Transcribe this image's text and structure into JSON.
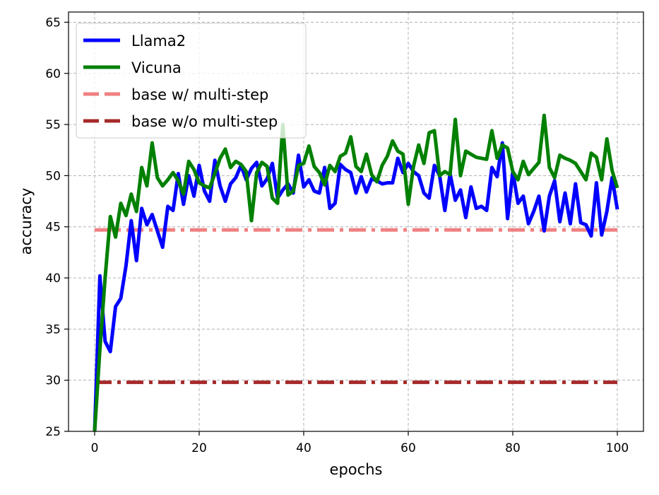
{
  "chart_data": {
    "type": "line",
    "title": "",
    "xlabel": "epochs",
    "ylabel": "accuracy",
    "xlim": [
      -5,
      105
    ],
    "ylim": [
      25,
      66
    ],
    "xticks": [
      0,
      20,
      40,
      60,
      80,
      100
    ],
    "yticks": [
      25,
      30,
      35,
      40,
      45,
      50,
      55,
      60,
      65
    ],
    "grid": true,
    "legend_position": "top-left",
    "series": [
      {
        "name": "Llama2",
        "color": "#0000ff",
        "style": "solid",
        "x": [
          0,
          1,
          2,
          3,
          4,
          5,
          6,
          7,
          8,
          9,
          10,
          11,
          12,
          13,
          14,
          15,
          16,
          17,
          18,
          19,
          20,
          21,
          22,
          23,
          24,
          25,
          26,
          27,
          28,
          29,
          30,
          31,
          32,
          33,
          34,
          35,
          36,
          37,
          38,
          39,
          40,
          41,
          42,
          43,
          44,
          45,
          46,
          47,
          48,
          49,
          50,
          51,
          52,
          53,
          54,
          55,
          56,
          57,
          58,
          59,
          60,
          61,
          62,
          63,
          64,
          65,
          66,
          67,
          68,
          69,
          70,
          71,
          72,
          73,
          74,
          75,
          76,
          77,
          78,
          79,
          80,
          81,
          82,
          83,
          84,
          85,
          86,
          87,
          88,
          89,
          90,
          91,
          92,
          93,
          94,
          95,
          96,
          97,
          98,
          99,
          100
        ],
        "values": [
          25.0,
          40.2,
          33.8,
          32.8,
          37.2,
          38.0,
          41.2,
          45.6,
          41.7,
          46.8,
          45.2,
          46.2,
          44.6,
          43.0,
          47.0,
          46.6,
          50.2,
          47.2,
          50.0,
          48.0,
          51.0,
          48.5,
          47.5,
          51.5,
          49.0,
          47.5,
          49.2,
          49.8,
          51.0,
          49.6,
          50.7,
          51.3,
          49.0,
          49.7,
          51.2,
          47.8,
          48.6,
          49.2,
          48.3,
          52.0,
          48.9,
          49.6,
          48.5,
          48.3,
          50.8,
          46.8,
          47.3,
          51.1,
          50.6,
          50.3,
          48.3,
          49.9,
          48.4,
          49.7,
          49.5,
          49.2,
          49.3,
          49.3,
          51.7,
          50.3,
          51.2,
          50.4,
          50.0,
          48.3,
          47.8,
          51.0,
          50.0,
          46.6,
          50.2,
          47.6,
          48.6,
          45.9,
          48.9,
          46.8,
          47.0,
          46.6,
          50.8,
          49.9,
          53.2,
          45.8,
          50.4,
          47.3,
          48.0,
          45.3,
          46.5,
          48.0,
          44.6,
          48.0,
          49.5,
          45.5,
          48.3,
          45.3,
          49.2,
          45.4,
          45.2,
          44.1,
          49.3,
          44.2,
          46.5,
          49.8,
          46.7
        ]
      },
      {
        "name": "Vicuna",
        "color": "#008000",
        "style": "solid",
        "x": [
          0,
          1,
          2,
          3,
          4,
          5,
          6,
          7,
          8,
          9,
          10,
          11,
          12,
          13,
          14,
          15,
          16,
          17,
          18,
          19,
          20,
          21,
          22,
          23,
          24,
          25,
          26,
          27,
          28,
          29,
          30,
          31,
          32,
          33,
          34,
          35,
          36,
          37,
          38,
          39,
          40,
          41,
          42,
          43,
          44,
          45,
          46,
          47,
          48,
          49,
          50,
          51,
          52,
          53,
          54,
          55,
          56,
          57,
          58,
          59,
          60,
          61,
          62,
          63,
          64,
          65,
          66,
          67,
          68,
          69,
          70,
          71,
          72,
          73,
          74,
          75,
          76,
          77,
          78,
          79,
          80,
          81,
          82,
          83,
          84,
          85,
          86,
          87,
          88,
          89,
          90,
          91,
          92,
          93,
          94,
          95,
          96,
          97,
          98,
          99,
          100
        ],
        "values": [
          25.0,
          33.0,
          40.0,
          46.0,
          44.0,
          47.3,
          46.1,
          48.2,
          46.5,
          50.8,
          49.0,
          53.2,
          49.8,
          49.0,
          49.6,
          50.3,
          49.5,
          48.2,
          51.4,
          50.6,
          49.3,
          49.0,
          48.8,
          50.2,
          51.7,
          52.6,
          50.8,
          51.4,
          51.1,
          50.4,
          45.6,
          50.3,
          51.3,
          50.9,
          47.8,
          47.3,
          55.0,
          48.1,
          48.5,
          51.0,
          51.2,
          52.9,
          50.9,
          50.3,
          49.1,
          51.0,
          50.4,
          51.9,
          52.2,
          53.8,
          50.9,
          50.4,
          52.1,
          50.1,
          49.4,
          51.0,
          51.9,
          53.4,
          52.4,
          52.1,
          47.2,
          50.9,
          53.0,
          51.2,
          54.2,
          54.4,
          50.0,
          50.4,
          50.1,
          55.5,
          50.0,
          52.4,
          52.1,
          51.8,
          51.7,
          51.6,
          54.4,
          51.7,
          53.0,
          52.7,
          50.4,
          49.6,
          51.4,
          50.1,
          50.7,
          51.3,
          55.9,
          50.8,
          49.8,
          52.0,
          51.7,
          51.5,
          51.2,
          50.4,
          49.6,
          52.2,
          51.8,
          49.6,
          53.6,
          50.5,
          48.8
        ]
      },
      {
        "name": "base w/ multi-step",
        "color": "#f08080",
        "style": "dashdot",
        "x": [
          0,
          100
        ],
        "values": [
          44.7,
          44.7
        ]
      },
      {
        "name": "base w/o multi-step",
        "color": "#a52a2a",
        "style": "dashdot",
        "x": [
          0,
          100
        ],
        "values": [
          29.8,
          29.8
        ]
      }
    ]
  }
}
